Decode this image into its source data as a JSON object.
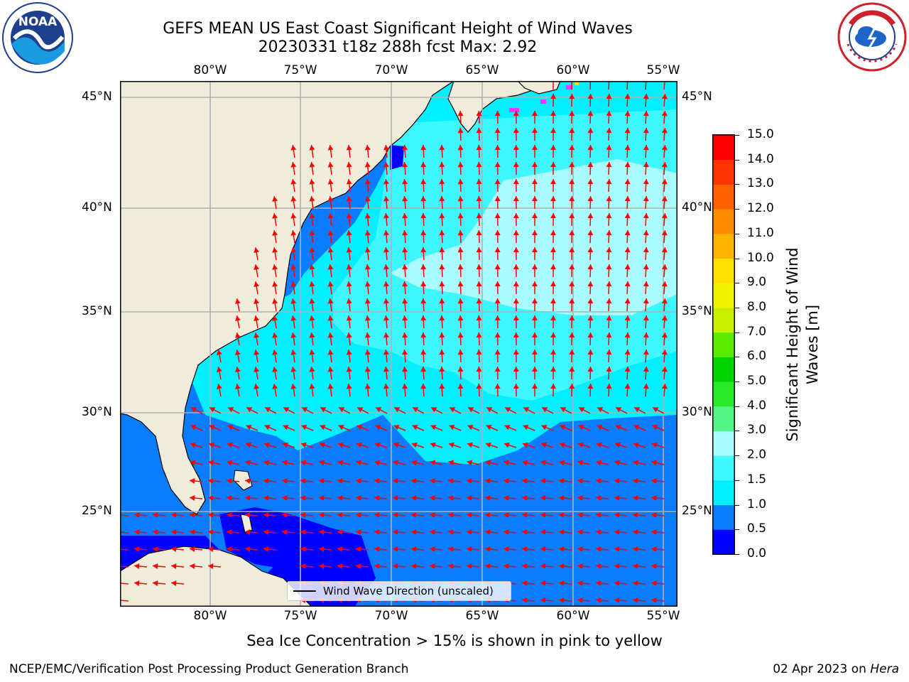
{
  "title": {
    "line1": "GEFS MEAN US East Coast Significant Height of Wind Waves",
    "line2": "20230331 t18z 288h fcst   Max: 2.92"
  },
  "map": {
    "lon_labels": [
      "80°W",
      "75°W",
      "70°W",
      "65°W",
      "60°W",
      "55°W"
    ],
    "lat_labels": [
      "45°N",
      "40°N",
      "35°N",
      "30°N",
      "25°N"
    ],
    "lon_range": [
      -85,
      -54
    ],
    "lat_range": [
      20.5,
      46
    ],
    "grid": true,
    "arrow_color": "#ff0000",
    "land_color": "#efecdc"
  },
  "legend": {
    "label": "Wind Wave Direction (unscaled)"
  },
  "colorbar": {
    "label_line1": "Significant Height of Wind",
    "label_line2": "Waves [m]",
    "ticks": [
      "0.0",
      "0.5",
      "1.0",
      "1.5",
      "2.0",
      "3.0",
      "4.0",
      "5.0",
      "6.0",
      "7.0",
      "8.0",
      "9.0",
      "10.0",
      "11.0",
      "12.0",
      "13.0",
      "14.0",
      "15.0"
    ],
    "colors": [
      "#0000ff",
      "#0a7cff",
      "#00f0ff",
      "#3ff8ff",
      "#aafcff",
      "#55f58a",
      "#2be82b",
      "#00d400",
      "#5cea00",
      "#c8f000",
      "#f2f200",
      "#ffe000",
      "#ffb000",
      "#ff8c00",
      "#ff6000",
      "#ff3400",
      "#ff0000"
    ]
  },
  "note": "Sea Ice Concentration > 15% is shown in pink to yellow",
  "footer": {
    "left": "NCEP/EMC/Verification Post Processing Product Generation Branch",
    "right_prefix": "02 Apr 2023 on ",
    "right_host": "Hera"
  },
  "logos": {
    "left": "NOAA",
    "right": "NATIONAL WEATHER SERVICE"
  }
}
